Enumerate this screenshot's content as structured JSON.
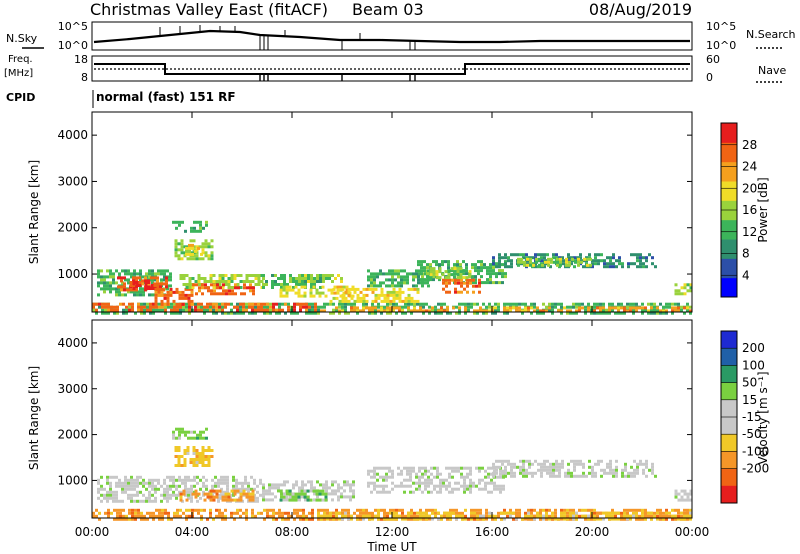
{
  "header": {
    "title": "Christmas Valley East (fitACF)",
    "beam": "Beam 03",
    "date": "08/Aug/2019"
  },
  "params": {
    "nsky_label": "N.Sky",
    "nsky_ticks": [
      "10^5",
      "10^0"
    ],
    "nsearch_label": "N.Search",
    "nsearch_ticks": [
      "10^5",
      "10^0"
    ],
    "freq_label_1": "Freq.",
    "freq_label_2": "[MHz]",
    "freq_ticks": [
      "18",
      "8"
    ],
    "nave_label": "Nave",
    "nave_ticks": [
      "60",
      "0"
    ],
    "cpid_label": "CPID",
    "cpid_value": "normal (fast) 151 RF"
  },
  "chart_data": [
    {
      "type": "heatmap",
      "name": "power",
      "xlabel": "",
      "ylabel": "Slant Range [km]",
      "x_ticks": [],
      "y_ticks": [
        "4000",
        "3000",
        "2000",
        "1000"
      ],
      "y_tick_values": [
        4000,
        3000,
        2000,
        1000
      ],
      "xlim_hours": [
        0,
        24
      ],
      "ylim_km": [
        180,
        4500
      ],
      "colorbar": {
        "label": "Power [dB]",
        "ticks": [
          "28",
          "24",
          "20",
          "16",
          "12",
          "8",
          "4"
        ],
        "tick_values": [
          28,
          24,
          20,
          16,
          12,
          8,
          4
        ],
        "range": [
          0,
          32
        ],
        "colors": [
          "#0000ff",
          "#2c4fa8",
          "#2f8f6e",
          "#3cb45a",
          "#9ad23c",
          "#f0dc28",
          "#f5a01e",
          "#f06414",
          "#e61e1e"
        ]
      },
      "regions": [
        {
          "t0": 0.0,
          "t1": 24.0,
          "r0": 180,
          "r1": 380,
          "level": 3
        },
        {
          "t0": 0.0,
          "t1": 9.0,
          "r0": 220,
          "r1": 380,
          "level": 7
        },
        {
          "t0": 0.2,
          "t1": 3.2,
          "r0": 550,
          "r1": 1100,
          "level": 3
        },
        {
          "t0": 1.0,
          "t1": 3.0,
          "r0": 650,
          "r1": 950,
          "level": 7
        },
        {
          "t0": 1.5,
          "t1": 2.5,
          "r0": 700,
          "r1": 850,
          "level": 8
        },
        {
          "t0": 2.5,
          "t1": 4.0,
          "r0": 350,
          "r1": 700,
          "level": 7
        },
        {
          "t0": 3.2,
          "t1": 4.6,
          "r0": 1900,
          "r1": 2150,
          "level": 3
        },
        {
          "t0": 3.3,
          "t1": 4.8,
          "r0": 1350,
          "r1": 1750,
          "level": 4
        },
        {
          "t0": 3.6,
          "t1": 4.4,
          "r0": 1450,
          "r1": 1650,
          "level": 5
        },
        {
          "t0": 3.5,
          "t1": 6.8,
          "r0": 700,
          "r1": 1000,
          "level": 4
        },
        {
          "t0": 4.0,
          "t1": 6.5,
          "r0": 600,
          "r1": 800,
          "level": 7
        },
        {
          "t0": 6.8,
          "t1": 9.2,
          "r0": 700,
          "r1": 1000,
          "level": 3
        },
        {
          "t0": 7.5,
          "t1": 10.5,
          "r0": 550,
          "r1": 750,
          "level": 5
        },
        {
          "t0": 8.0,
          "t1": 10.0,
          "r0": 850,
          "r1": 1000,
          "level": 4
        },
        {
          "t0": 9.5,
          "t1": 13.0,
          "r0": 380,
          "r1": 700,
          "level": 5
        },
        {
          "t0": 11.0,
          "t1": 13.5,
          "r0": 750,
          "r1": 1100,
          "level": 3
        },
        {
          "t0": 13.0,
          "t1": 16.5,
          "r0": 800,
          "r1": 1300,
          "level": 3
        },
        {
          "t0": 14.0,
          "t1": 15.5,
          "r0": 600,
          "r1": 900,
          "level": 7
        },
        {
          "t0": 13.5,
          "t1": 15.2,
          "r0": 950,
          "r1": 1150,
          "level": 4
        },
        {
          "t0": 16.0,
          "t1": 22.5,
          "r0": 1150,
          "r1": 1450,
          "level": 2
        },
        {
          "t0": 17.0,
          "t1": 20.0,
          "r0": 1200,
          "r1": 1350,
          "level": 4
        },
        {
          "t0": 23.3,
          "t1": 24.0,
          "r0": 600,
          "r1": 800,
          "level": 4
        },
        {
          "t0": 9.0,
          "t1": 24.0,
          "r0": 180,
          "r1": 300,
          "level": 6
        }
      ]
    },
    {
      "type": "heatmap",
      "name": "velocity",
      "xlabel": "Time UT",
      "ylabel": "Slant Range [km]",
      "x_ticks": [
        "00:00",
        "04:00",
        "08:00",
        "12:00",
        "16:00",
        "20:00",
        "00:00"
      ],
      "x_tick_values": [
        0,
        4,
        8,
        12,
        16,
        20,
        24
      ],
      "y_ticks": [
        "4000",
        "3000",
        "2000",
        "1000"
      ],
      "y_tick_values": [
        4000,
        3000,
        2000,
        1000
      ],
      "xlim_hours": [
        0,
        24
      ],
      "ylim_km": [
        180,
        4500
      ],
      "colorbar": {
        "label": "Velocity [m s⁻¹]",
        "ticks": [
          "200",
          "100",
          "50",
          "15",
          "-15",
          "-50",
          "-100",
          "-200"
        ],
        "colors": [
          "#1e2ad2",
          "#2060a8",
          "#2a9a64",
          "#7ad040",
          "#c8c8c8",
          "#c8c8c8",
          "#f0c828",
          "#f59628",
          "#f06414",
          "#e61e1e"
        ]
      },
      "regions": [
        {
          "t0": 0.0,
          "t1": 24.0,
          "r0": 180,
          "r1": 380,
          "level": 7
        },
        {
          "t0": 0.2,
          "t1": 6.8,
          "r0": 550,
          "r1": 1100,
          "level": 4
        },
        {
          "t0": 3.2,
          "t1": 4.6,
          "r0": 1900,
          "r1": 2150,
          "level": 3
        },
        {
          "t0": 3.3,
          "t1": 4.8,
          "r0": 1350,
          "r1": 1750,
          "level": 6
        },
        {
          "t0": 3.5,
          "t1": 6.5,
          "r0": 600,
          "r1": 800,
          "level": 7
        },
        {
          "t0": 6.8,
          "t1": 10.5,
          "r0": 550,
          "r1": 1000,
          "level": 4
        },
        {
          "t0": 7.5,
          "t1": 9.5,
          "r0": 600,
          "r1": 800,
          "level": 3
        },
        {
          "t0": 11.0,
          "t1": 16.5,
          "r0": 750,
          "r1": 1300,
          "level": 4
        },
        {
          "t0": 16.0,
          "t1": 22.5,
          "r0": 1100,
          "r1": 1450,
          "level": 4
        },
        {
          "t0": 23.3,
          "t1": 24.0,
          "r0": 600,
          "r1": 800,
          "level": 4
        },
        {
          "t0": 9.0,
          "t1": 24.0,
          "r0": 180,
          "r1": 320,
          "level": 6
        }
      ]
    }
  ]
}
